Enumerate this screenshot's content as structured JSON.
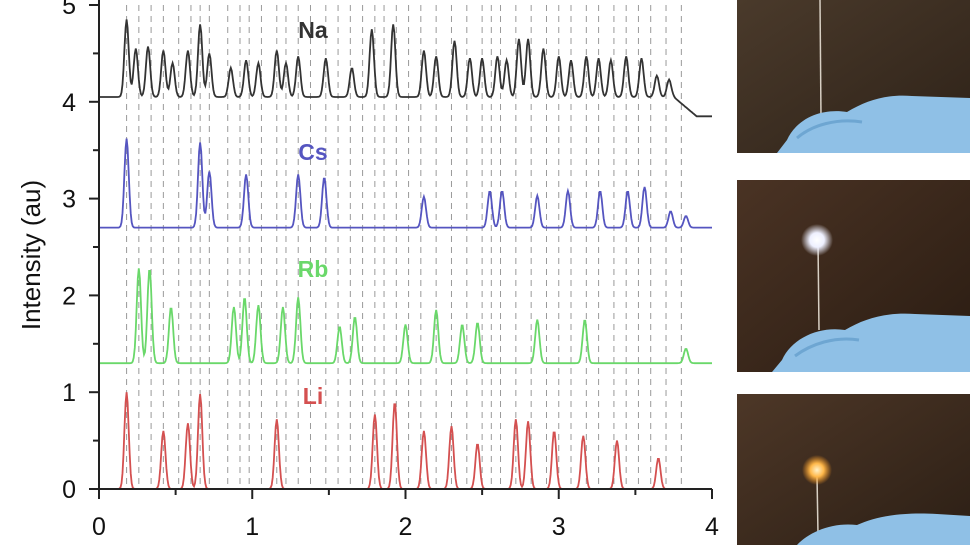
{
  "chart_data": {
    "type": "line",
    "ylabel": "Intensity (au)",
    "xlabel": "",
    "xlim": [
      0,
      4
    ],
    "ylim": [
      0,
      5
    ],
    "x_ticks": [
      "0",
      "1",
      "2",
      "3",
      "4"
    ],
    "y_ticks": [
      "0",
      "1",
      "2",
      "3",
      "4",
      "5"
    ],
    "reference_lines_x": [
      0.18,
      0.26,
      0.34,
      0.42,
      0.52,
      0.6,
      0.66,
      0.72,
      0.84,
      0.92,
      0.98,
      1.06,
      1.16,
      1.22,
      1.3,
      1.38,
      1.48,
      1.56,
      1.64,
      1.72,
      1.8,
      1.86,
      1.94,
      2.02,
      2.1,
      2.2,
      2.3,
      2.4,
      2.5,
      2.56,
      2.62,
      2.72,
      2.82,
      2.92,
      3.0,
      3.08,
      3.18,
      3.26,
      3.36,
      3.44,
      3.52,
      3.6,
      3.7,
      3.8
    ],
    "series": [
      {
        "name": "Li",
        "color": "#d45050",
        "baseline": 0.0,
        "peaks": [
          [
            0.18,
            1.0
          ],
          [
            0.42,
            0.6
          ],
          [
            0.58,
            0.68
          ],
          [
            0.66,
            0.98
          ],
          [
            1.16,
            0.72
          ],
          [
            1.8,
            0.77
          ],
          [
            1.93,
            0.9
          ],
          [
            2.12,
            0.6
          ],
          [
            2.3,
            0.65
          ],
          [
            2.47,
            0.47
          ],
          [
            2.72,
            0.72
          ],
          [
            2.8,
            0.7
          ],
          [
            2.97,
            0.6
          ],
          [
            3.16,
            0.55
          ],
          [
            3.38,
            0.5
          ],
          [
            3.65,
            0.32
          ]
        ]
      },
      {
        "name": "Rb",
        "color": "#6ad86a",
        "baseline": 1.3,
        "peaks": [
          [
            0.26,
            0.98
          ],
          [
            0.33,
            0.98
          ],
          [
            0.47,
            0.58
          ],
          [
            0.88,
            0.58
          ],
          [
            0.95,
            0.68
          ],
          [
            1.04,
            0.6
          ],
          [
            1.2,
            0.58
          ],
          [
            1.3,
            0.68
          ],
          [
            1.57,
            0.38
          ],
          [
            1.67,
            0.48
          ],
          [
            2.0,
            0.4
          ],
          [
            2.2,
            0.55
          ],
          [
            2.37,
            0.4
          ],
          [
            2.47,
            0.42
          ],
          [
            2.86,
            0.45
          ],
          [
            3.17,
            0.45
          ],
          [
            3.83,
            0.15
          ]
        ]
      },
      {
        "name": "Cs",
        "color": "#5555c0",
        "baseline": 2.7,
        "peaks": [
          [
            0.18,
            0.92
          ],
          [
            0.66,
            0.88
          ],
          [
            0.72,
            0.58
          ],
          [
            0.96,
            0.55
          ],
          [
            1.3,
            0.55
          ],
          [
            1.47,
            0.52
          ],
          [
            2.12,
            0.32
          ],
          [
            2.55,
            0.38
          ],
          [
            2.63,
            0.38
          ],
          [
            2.86,
            0.33
          ],
          [
            3.06,
            0.38
          ],
          [
            3.27,
            0.38
          ],
          [
            3.45,
            0.38
          ],
          [
            3.56,
            0.42
          ],
          [
            3.73,
            0.17
          ],
          [
            3.83,
            0.12
          ]
        ]
      },
      {
        "name": "Na",
        "color": "#333333",
        "baseline": 4.05,
        "end_baseline": 3.85,
        "peaks": [
          [
            0.18,
            0.8
          ],
          [
            0.24,
            0.5
          ],
          [
            0.32,
            0.52
          ],
          [
            0.42,
            0.48
          ],
          [
            0.48,
            0.35
          ],
          [
            0.58,
            0.48
          ],
          [
            0.66,
            0.75
          ],
          [
            0.72,
            0.45
          ],
          [
            0.86,
            0.3
          ],
          [
            0.96,
            0.38
          ],
          [
            1.04,
            0.35
          ],
          [
            1.16,
            0.48
          ],
          [
            1.22,
            0.35
          ],
          [
            1.3,
            0.42
          ],
          [
            1.48,
            0.4
          ],
          [
            1.65,
            0.3
          ],
          [
            1.78,
            0.7
          ],
          [
            1.92,
            0.75
          ],
          [
            2.12,
            0.48
          ],
          [
            2.2,
            0.42
          ],
          [
            2.32,
            0.58
          ],
          [
            2.42,
            0.4
          ],
          [
            2.5,
            0.4
          ],
          [
            2.6,
            0.42
          ],
          [
            2.66,
            0.38
          ],
          [
            2.74,
            0.6
          ],
          [
            2.8,
            0.6
          ],
          [
            2.9,
            0.5
          ],
          [
            3.0,
            0.42
          ],
          [
            3.08,
            0.38
          ],
          [
            3.18,
            0.42
          ],
          [
            3.26,
            0.4
          ],
          [
            3.34,
            0.38
          ],
          [
            3.44,
            0.42
          ],
          [
            3.54,
            0.4
          ],
          [
            3.64,
            0.22
          ],
          [
            3.72,
            0.18
          ]
        ]
      }
    ]
  },
  "photos": [
    {
      "name": "photo-fiber-unlit",
      "glow": "none"
    },
    {
      "name": "photo-fiber-white-glow",
      "glow": "#f4f6ff"
    },
    {
      "name": "photo-fiber-orange-glow",
      "glow": "#ffb84a"
    }
  ]
}
